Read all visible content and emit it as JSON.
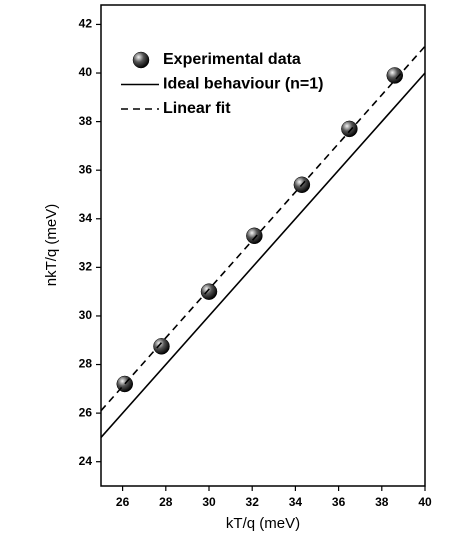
{
  "chart_data": {
    "type": "scatter",
    "xlabel": "kT/q (meV)",
    "ylabel": "nkT/q (meV)",
    "xlim": [
      25,
      40
    ],
    "ylim": [
      23,
      42.8
    ],
    "xticks": [
      26,
      28,
      30,
      32,
      34,
      36,
      38,
      40
    ],
    "yticks": [
      24,
      26,
      28,
      30,
      32,
      34,
      36,
      38,
      40,
      42
    ],
    "legend": "top-left",
    "series": [
      {
        "name": "Experimental data",
        "style": "marker",
        "color": "#000000",
        "x": [
          26.1,
          27.8,
          30.0,
          32.1,
          34.3,
          36.5,
          38.6
        ],
        "values": [
          27.2,
          28.75,
          31.0,
          33.3,
          35.4,
          37.7,
          39.9
        ]
      },
      {
        "name": "Ideal behaviour (n=1)",
        "style": "solid",
        "color": "#000000",
        "x": [
          25,
          40
        ],
        "values": [
          25,
          40
        ]
      },
      {
        "name": "Linear fit",
        "style": "dashed",
        "color": "#000000",
        "x": [
          25,
          40
        ],
        "values": [
          26.1,
          41.1
        ]
      }
    ]
  }
}
